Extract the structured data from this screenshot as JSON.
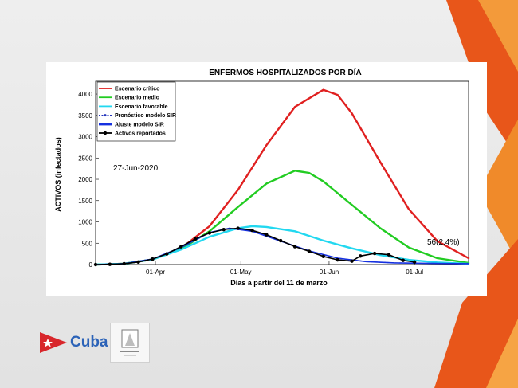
{
  "brand": {
    "name": "Cuba",
    "flag_colors": [
      "#d8262b",
      "#1f4fa3",
      "#ffffff"
    ],
    "accent": "#e8561a"
  },
  "chart_data": {
    "type": "line",
    "title": "ENFERMOS HOSPITALIZADOS POR DÍA",
    "xlabel": "Días a partir del 11 de marzo",
    "ylabel": "ACTIVOS (infectados)",
    "x_ticks": [
      "01-Apr",
      "01-May",
      "01-Jun",
      "01-Jul"
    ],
    "y_ticks": [
      "0",
      "500",
      "1000",
      "1500",
      "2000",
      "2500",
      "3000",
      "3500",
      "4000"
    ],
    "xlim": [
      "11-Mar",
      "20-Jul"
    ],
    "ylim": [
      0,
      4300
    ],
    "grid": false,
    "legend_placement": "top-left",
    "date_annotation": "27-Jun-2020",
    "final_annotation": "56(2.4%)",
    "series": [
      {
        "name": "Escenario crítico",
        "color": "#e02020",
        "style": "solid",
        "points": [
          [
            "11-Mar",
            0
          ],
          [
            "21-Mar",
            20
          ],
          [
            "31-Mar",
            120
          ],
          [
            "10-Apr",
            380
          ],
          [
            "20-Apr",
            900
          ],
          [
            "30-Apr",
            1750
          ],
          [
            "10-May",
            2800
          ],
          [
            "20-May",
            3700
          ],
          [
            "30-May",
            4100
          ],
          [
            "04-Jun",
            3980
          ],
          [
            "09-Jun",
            3550
          ],
          [
            "19-Jun",
            2400
          ],
          [
            "29-Jun",
            1300
          ],
          [
            "09-Jul",
            550
          ],
          [
            "20-Jul",
            150
          ]
        ]
      },
      {
        "name": "Escenario medio",
        "color": "#22cc22",
        "style": "solid",
        "points": [
          [
            "11-Mar",
            0
          ],
          [
            "21-Mar",
            20
          ],
          [
            "31-Mar",
            120
          ],
          [
            "10-Apr",
            360
          ],
          [
            "20-Apr",
            780
          ],
          [
            "30-Apr",
            1350
          ],
          [
            "10-May",
            1900
          ],
          [
            "20-May",
            2200
          ],
          [
            "25-May",
            2150
          ],
          [
            "30-May",
            1950
          ],
          [
            "09-Jun",
            1400
          ],
          [
            "19-Jun",
            850
          ],
          [
            "29-Jun",
            400
          ],
          [
            "09-Jul",
            150
          ],
          [
            "20-Jul",
            40
          ]
        ]
      },
      {
        "name": "Escenario favorable",
        "color": "#22d8f0",
        "style": "solid",
        "points": [
          [
            "11-Mar",
            0
          ],
          [
            "21-Mar",
            20
          ],
          [
            "31-Mar",
            120
          ],
          [
            "10-Apr",
            350
          ],
          [
            "20-Apr",
            650
          ],
          [
            "30-Apr",
            850
          ],
          [
            "05-May",
            900
          ],
          [
            "10-May",
            880
          ],
          [
            "20-May",
            780
          ],
          [
            "30-May",
            560
          ],
          [
            "09-Jun",
            380
          ],
          [
            "19-Jun",
            220
          ],
          [
            "29-Jun",
            110
          ],
          [
            "09-Jul",
            50
          ],
          [
            "20-Jul",
            20
          ]
        ]
      },
      {
        "name": "Pronóstico modelo SIR",
        "color": "#2233bb",
        "style": "dashed",
        "points": [
          [
            "11-Mar",
            0
          ],
          [
            "21-Mar",
            20
          ],
          [
            "31-Mar",
            130
          ],
          [
            "10-Apr",
            400
          ],
          [
            "20-Apr",
            750
          ],
          [
            "27-Apr",
            850
          ],
          [
            "05-May",
            780
          ],
          [
            "15-May",
            550
          ],
          [
            "25-May",
            320
          ],
          [
            "04-Jun",
            150
          ],
          [
            "14-Jun",
            70
          ],
          [
            "24-Jun",
            40
          ],
          [
            "04-Jul",
            30
          ],
          [
            "20-Jul",
            20
          ]
        ]
      },
      {
        "name": "Ajuste modelo SIR",
        "color": "#1530e0",
        "style": "thick",
        "points": [
          [
            "11-Mar",
            0
          ],
          [
            "21-Mar",
            20
          ],
          [
            "31-Mar",
            130
          ],
          [
            "10-Apr",
            400
          ],
          [
            "20-Apr",
            750
          ],
          [
            "27-Apr",
            850
          ],
          [
            "05-May",
            780
          ],
          [
            "15-May",
            550
          ],
          [
            "25-May",
            320
          ],
          [
            "04-Jun",
            150
          ],
          [
            "14-Jun",
            70
          ],
          [
            "24-Jun",
            40
          ],
          [
            "04-Jul",
            30
          ],
          [
            "20-Jul",
            20
          ]
        ]
      },
      {
        "name": "Activos reportados",
        "color": "#000000",
        "style": "markers",
        "points": [
          [
            "11-Mar",
            0
          ],
          [
            "16-Mar",
            5
          ],
          [
            "21-Mar",
            20
          ],
          [
            "26-Mar",
            60
          ],
          [
            "31-Mar",
            130
          ],
          [
            "05-Apr",
            250
          ],
          [
            "10-Apr",
            420
          ],
          [
            "15-Apr",
            600
          ],
          [
            "20-Apr",
            740
          ],
          [
            "25-Apr",
            820
          ],
          [
            "30-Apr",
            850
          ],
          [
            "05-May",
            800
          ],
          [
            "10-May",
            700
          ],
          [
            "15-May",
            560
          ],
          [
            "20-May",
            420
          ],
          [
            "25-May",
            310
          ],
          [
            "30-May",
            190
          ],
          [
            "04-Jun",
            110
          ],
          [
            "09-Jun",
            80
          ],
          [
            "12-Jun",
            200
          ],
          [
            "17-Jun",
            260
          ],
          [
            "22-Jun",
            230
          ],
          [
            "27-Jun",
            100
          ],
          [
            "01-Jul",
            60
          ]
        ]
      }
    ]
  }
}
